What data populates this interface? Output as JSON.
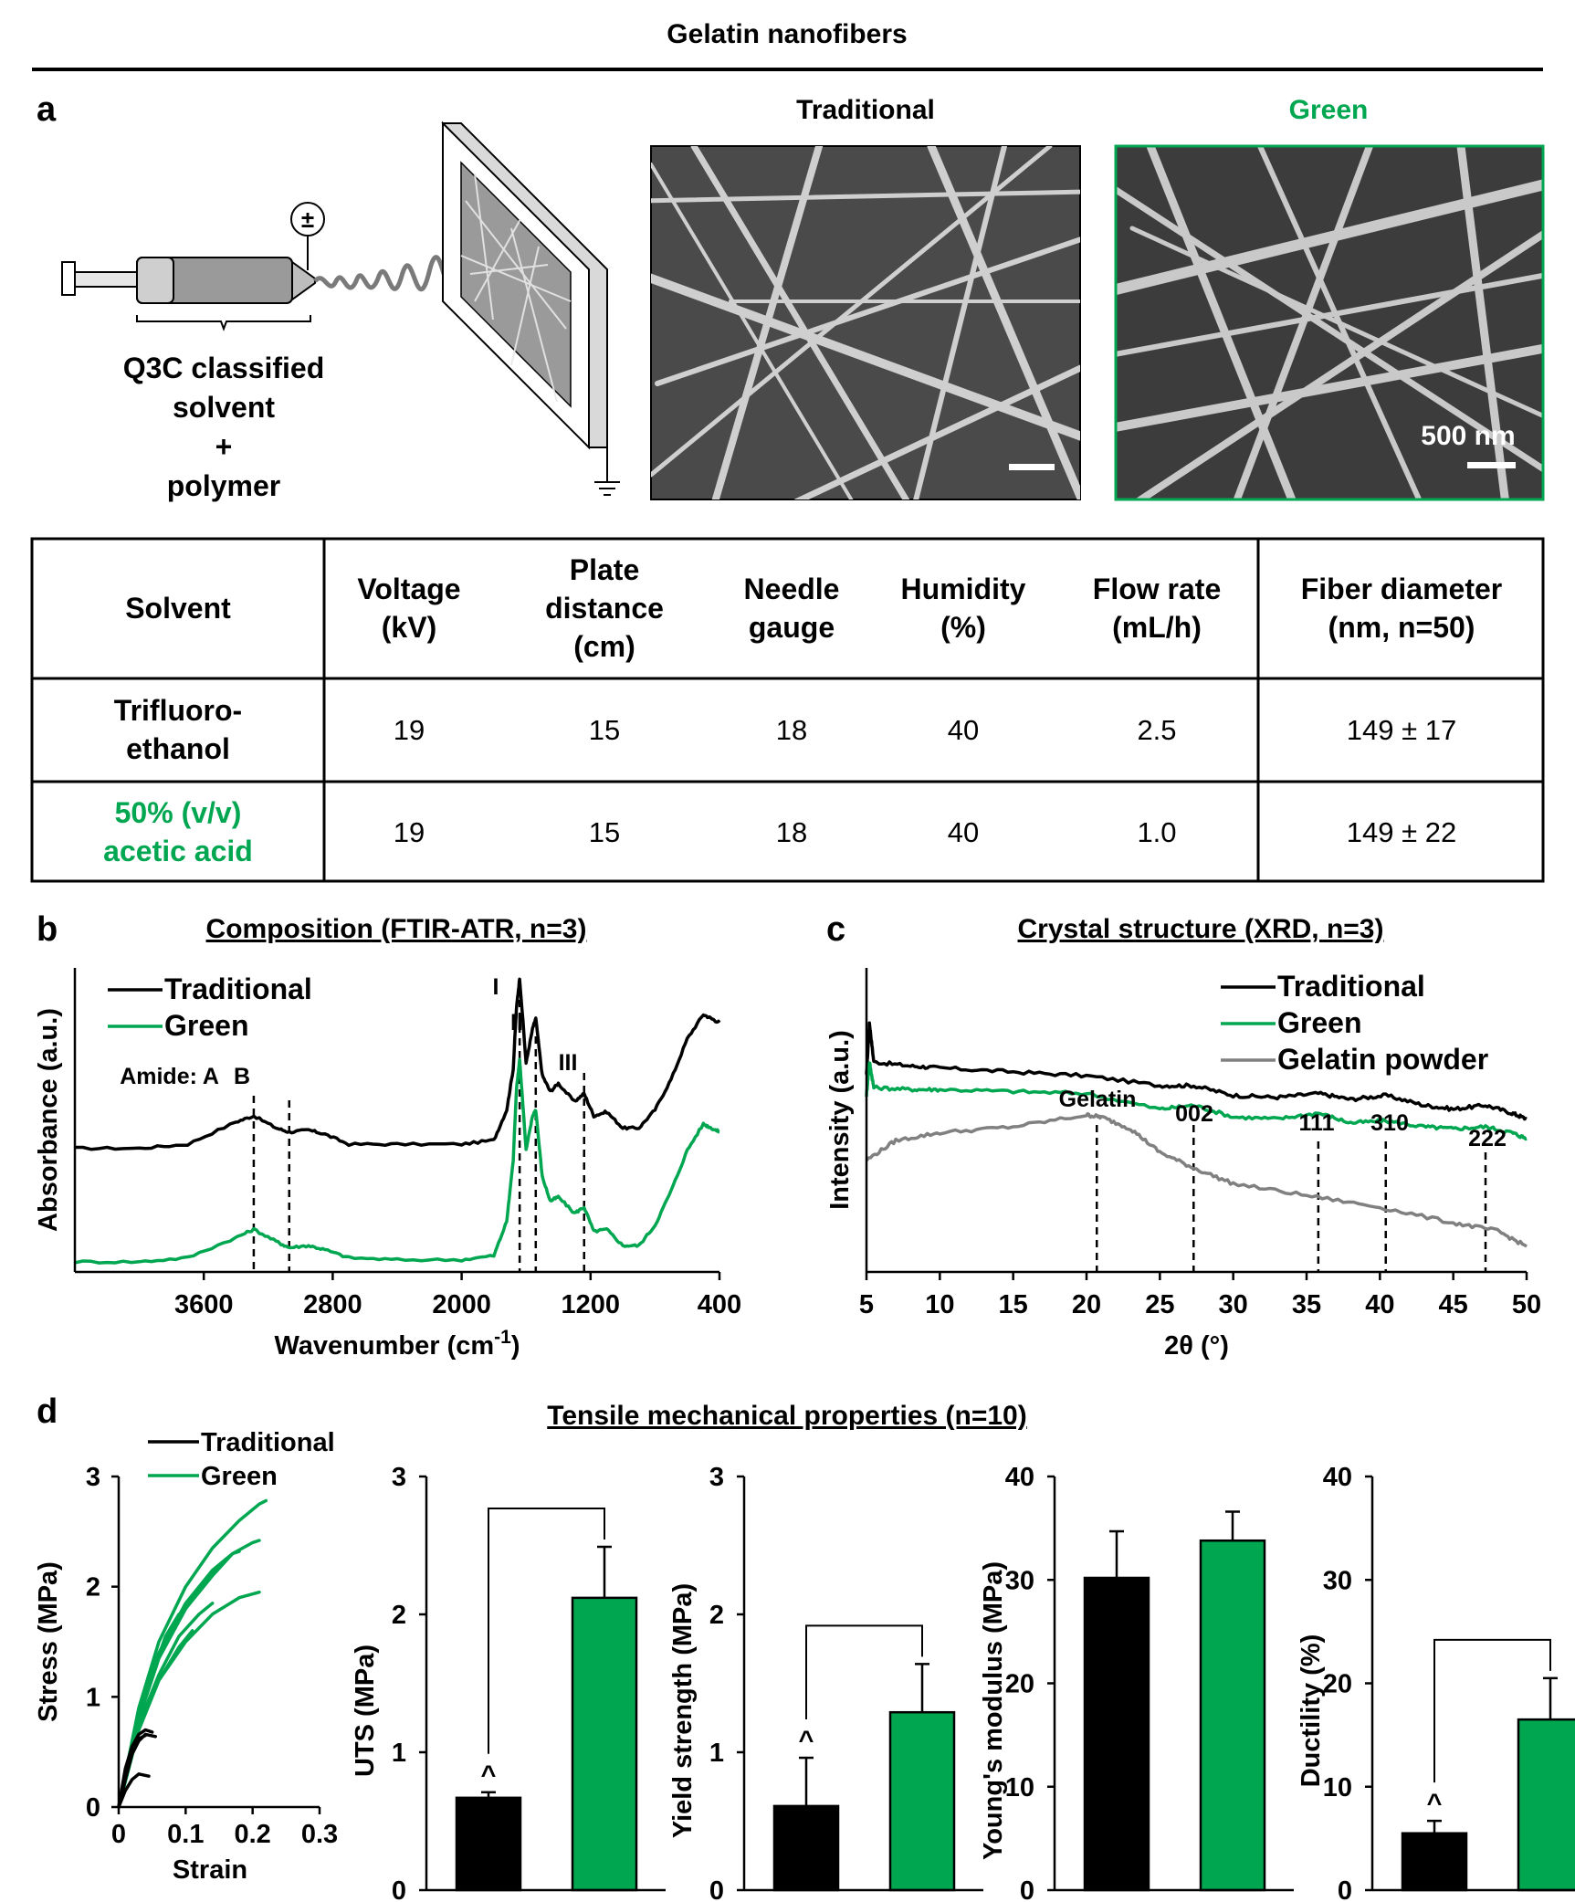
{
  "header": {
    "title": "Gelatin nanofibers"
  },
  "colors": {
    "green": "#00a650",
    "black": "#000000",
    "grey": "#808080"
  },
  "panel_a": {
    "label": "a",
    "schematic_caption": [
      "Q3C classified",
      "solvent",
      "+",
      "polymer"
    ],
    "image_traditional_title": "Traditional",
    "image_green_title": "Green",
    "scale_bar_label": "500 nm"
  },
  "table": {
    "headers": [
      [
        "Solvent"
      ],
      [
        "Voltage",
        "(kV)"
      ],
      [
        "Plate",
        "distance",
        "(cm)"
      ],
      [
        "Needle",
        "gauge"
      ],
      [
        "Humidity",
        "(%)"
      ],
      [
        "Flow rate",
        "(mL/h)"
      ],
      [
        "Fiber diameter",
        "(nm, n=50)"
      ]
    ],
    "rows": [
      {
        "solvent": [
          "Trifluoro-",
          "ethanol"
        ],
        "voltage": "19",
        "distance": "15",
        "gauge": "18",
        "humidity": "40",
        "flow": "2.5",
        "diameter": "149 ± 17"
      },
      {
        "solvent": [
          "50% (v/v)",
          "acetic acid"
        ],
        "voltage": "19",
        "distance": "15",
        "gauge": "18",
        "humidity": "40",
        "flow": "1.0",
        "diameter": "149 ± 22"
      }
    ]
  },
  "chart_data": [
    {
      "id": "b",
      "label": "b",
      "type": "line",
      "title": "Composition (FTIR-ATR, n=3)",
      "xlabel": "Wavenumber (cm-1)",
      "ylabel": "Absorbance (a.u.)",
      "xlim": [
        4400,
        400
      ],
      "x_ticks": [
        3600,
        2800,
        2000,
        1200,
        400
      ],
      "x_reversed": true,
      "legend": [
        "Traditional",
        "Green"
      ],
      "annotations": [
        "Amide: A",
        "B",
        "I",
        "II",
        "III"
      ],
      "peak_lines_x": [
        3290,
        3070,
        1640,
        1540,
        1240
      ],
      "series": [
        {
          "name": "Traditional",
          "color": "#000000",
          "x": [
            4400,
            4000,
            3700,
            3400,
            3290,
            3150,
            3070,
            2950,
            2850,
            2700,
            2400,
            2000,
            1800,
            1720,
            1680,
            1660,
            1640,
            1600,
            1560,
            1540,
            1500,
            1450,
            1400,
            1300,
            1240,
            1180,
            1100,
            1000,
            900,
            800,
            700,
            600,
            500,
            450,
            400
          ],
          "y": [
            0.56,
            0.56,
            0.58,
            0.69,
            0.72,
            0.66,
            0.64,
            0.65,
            0.63,
            0.58,
            0.58,
            0.58,
            0.6,
            0.75,
            0.95,
            1.25,
            1.4,
            0.98,
            1.15,
            1.2,
            0.92,
            0.84,
            0.88,
            0.79,
            0.83,
            0.72,
            0.74,
            0.66,
            0.66,
            0.75,
            0.9,
            1.1,
            1.22,
            1.2,
            1.18
          ]
        },
        {
          "name": "Green",
          "color": "#00a650",
          "x": [
            4400,
            4000,
            3700,
            3400,
            3290,
            3150,
            3070,
            2950,
            2850,
            2700,
            2400,
            2000,
            1800,
            1720,
            1680,
            1660,
            1640,
            1600,
            1560,
            1540,
            1500,
            1450,
            1400,
            1300,
            1240,
            1180,
            1100,
            1000,
            900,
            800,
            700,
            600,
            500,
            450,
            400
          ],
          "y": [
            0.0,
            0.0,
            0.02,
            0.12,
            0.16,
            0.1,
            0.07,
            0.08,
            0.06,
            0.02,
            0.01,
            0.01,
            0.03,
            0.2,
            0.5,
            0.85,
            1.0,
            0.55,
            0.72,
            0.75,
            0.42,
            0.3,
            0.32,
            0.24,
            0.27,
            0.15,
            0.16,
            0.08,
            0.08,
            0.18,
            0.35,
            0.55,
            0.68,
            0.66,
            0.64
          ]
        }
      ]
    },
    {
      "id": "c",
      "label": "c",
      "type": "line",
      "title": "Crystal structure (XRD, n=3)",
      "xlabel": "2θ (°)",
      "ylabel": "Intensity (a.u.)",
      "xlim": [
        5,
        50
      ],
      "x_ticks": [
        5,
        10,
        15,
        20,
        25,
        30,
        35,
        40,
        45,
        50
      ],
      "legend": [
        "Traditional",
        "Green",
        "Gelatin powder"
      ],
      "annotations": [
        "Gelatin",
        "002",
        "111",
        "310",
        "222"
      ],
      "peak_lines_x": [
        20.7,
        27.3,
        35.8,
        40.4,
        47.2
      ],
      "series": [
        {
          "name": "Traditional",
          "color": "#000000",
          "x": [
            5,
            5.2,
            5.5,
            8,
            10,
            15,
            20,
            25,
            27.3,
            30,
            33,
            35.8,
            38,
            40.4,
            43,
            45,
            47.2,
            49,
            50
          ],
          "y": [
            1.05,
            1.32,
            1.12,
            1.1,
            1.09,
            1.07,
            1.05,
            1.0,
            1.0,
            0.95,
            0.94,
            0.96,
            0.93,
            0.95,
            0.9,
            0.88,
            0.9,
            0.86,
            0.83
          ]
        },
        {
          "name": "Green",
          "color": "#00a650",
          "x": [
            5,
            5.2,
            5.5,
            8,
            10,
            15,
            20,
            25,
            27.3,
            30,
            33,
            35.8,
            38,
            40.4,
            43,
            45,
            47.2,
            49,
            50
          ],
          "y": [
            0.95,
            1.12,
            0.99,
            0.98,
            0.98,
            0.97,
            0.96,
            0.88,
            0.9,
            0.84,
            0.83,
            0.86,
            0.81,
            0.82,
            0.79,
            0.78,
            0.79,
            0.76,
            0.73
          ]
        },
        {
          "name": "Gelatin powder",
          "color": "#808080",
          "x": [
            5,
            7,
            10,
            15,
            20,
            21,
            23,
            25,
            27.3,
            30,
            35,
            40,
            45,
            48,
            50
          ],
          "y": [
            0.62,
            0.72,
            0.76,
            0.79,
            0.85,
            0.84,
            0.78,
            0.66,
            0.58,
            0.5,
            0.44,
            0.38,
            0.3,
            0.26,
            0.18
          ]
        }
      ]
    },
    {
      "id": "d-curves",
      "label": "d",
      "type": "line",
      "title": "Tensile mechanical properties (n=10)",
      "xlabel": "Strain",
      "ylabel": "Stress (MPa)",
      "xlim": [
        0,
        0.3
      ],
      "ylim": [
        0,
        3
      ],
      "x_ticks": [
        0,
        0.1,
        0.2,
        0.3
      ],
      "y_ticks": [
        0,
        1,
        2,
        3
      ],
      "legend": [
        "Traditional",
        "Green"
      ],
      "series": [
        {
          "name": "Green",
          "color": "#00a650",
          "x": [
            0,
            0.03,
            0.06,
            0.1,
            0.14,
            0.18,
            0.21,
            0.22
          ],
          "y": [
            0,
            0.9,
            1.5,
            2.0,
            2.35,
            2.6,
            2.75,
            2.78
          ]
        },
        {
          "name": "Green",
          "color": "#00a650",
          "x": [
            0,
            0.03,
            0.06,
            0.1,
            0.14,
            0.17,
            0.2,
            0.21
          ],
          "y": [
            0,
            0.8,
            1.35,
            1.8,
            2.1,
            2.3,
            2.4,
            2.42
          ]
        },
        {
          "name": "Green",
          "color": "#00a650",
          "x": [
            0,
            0.03,
            0.06,
            0.1,
            0.14,
            0.17,
            0.18
          ],
          "y": [
            0,
            0.85,
            1.4,
            1.85,
            2.15,
            2.3,
            2.32
          ]
        },
        {
          "name": "Green",
          "color": "#00a650",
          "x": [
            0,
            0.03,
            0.06,
            0.1,
            0.13,
            0.16
          ],
          "y": [
            0,
            0.8,
            1.35,
            1.8,
            2.05,
            2.25
          ]
        },
        {
          "name": "Green",
          "color": "#00a650",
          "x": [
            0,
            0.03,
            0.06,
            0.1,
            0.14,
            0.18,
            0.21
          ],
          "y": [
            0,
            0.7,
            1.15,
            1.5,
            1.75,
            1.9,
            1.95
          ]
        },
        {
          "name": "Green",
          "color": "#00a650",
          "x": [
            0,
            0.03,
            0.06,
            0.09,
            0.12,
            0.14
          ],
          "y": [
            0,
            0.75,
            1.2,
            1.55,
            1.75,
            1.85
          ]
        },
        {
          "name": "Green",
          "color": "#00a650",
          "x": [
            0,
            0.03,
            0.06,
            0.09,
            0.11
          ],
          "y": [
            0,
            0.7,
            1.15,
            1.45,
            1.6
          ]
        },
        {
          "name": "Green",
          "color": "#00a650",
          "x": [
            0,
            0.03,
            0.05,
            0.07,
            0.09
          ],
          "y": [
            0,
            0.8,
            1.2,
            1.55,
            1.75
          ]
        },
        {
          "name": "Traditional",
          "color": "#000000",
          "x": [
            0,
            0.01,
            0.02,
            0.03,
            0.04,
            0.05
          ],
          "y": [
            0,
            0.3,
            0.55,
            0.66,
            0.7,
            0.68
          ]
        },
        {
          "name": "Traditional",
          "color": "#000000",
          "x": [
            0,
            0.01,
            0.02,
            0.03,
            0.04,
            0.055
          ],
          "y": [
            0,
            0.25,
            0.48,
            0.6,
            0.66,
            0.64
          ]
        },
        {
          "name": "Traditional",
          "color": "#000000",
          "x": [
            0,
            0.01,
            0.02,
            0.03,
            0.04
          ],
          "y": [
            0,
            0.35,
            0.55,
            0.62,
            0.65
          ]
        },
        {
          "name": "Traditional",
          "color": "#000000",
          "x": [
            0,
            0.01,
            0.02,
            0.03,
            0.045
          ],
          "y": [
            0,
            0.15,
            0.25,
            0.3,
            0.28
          ]
        }
      ]
    },
    {
      "id": "d-uts",
      "type": "bar",
      "ylabel": "UTS (MPa)",
      "ylim": [
        0,
        3
      ],
      "y_ticks": [
        0,
        1,
        2,
        3
      ],
      "categories": [
        "Traditional",
        "Green"
      ],
      "values": [
        0.67,
        2.12
      ],
      "errors": [
        0.04,
        0.37
      ],
      "colors": [
        "#000000",
        "#00a650"
      ],
      "marker": "^",
      "significance_bracket": true
    },
    {
      "id": "d-yield",
      "type": "bar",
      "ylabel": "Yield strength (MPa)",
      "ylim": [
        0,
        3
      ],
      "y_ticks": [
        0,
        1,
        2,
        3
      ],
      "categories": [
        "Traditional",
        "Green"
      ],
      "values": [
        0.61,
        1.29
      ],
      "errors": [
        0.35,
        0.35
      ],
      "colors": [
        "#000000",
        "#00a650"
      ],
      "marker": "^",
      "significance_bracket": true
    },
    {
      "id": "d-modulus",
      "type": "bar",
      "ylabel": "Young's modulus (MPa)",
      "ylim": [
        0,
        40
      ],
      "y_ticks": [
        0,
        10,
        20,
        30,
        40
      ],
      "categories": [
        "Traditional",
        "Green"
      ],
      "values": [
        30.2,
        33.8
      ],
      "errors": [
        4.5,
        2.8
      ],
      "colors": [
        "#000000",
        "#00a650"
      ],
      "marker": "",
      "significance_bracket": false
    },
    {
      "id": "d-ductility",
      "type": "bar",
      "ylabel": "Ductility (%)",
      "ylim": [
        0,
        40
      ],
      "y_ticks": [
        0,
        10,
        20,
        30,
        40
      ],
      "categories": [
        "Traditional",
        "Green"
      ],
      "values": [
        5.5,
        16.5
      ],
      "errors": [
        1.2,
        4.0
      ],
      "colors": [
        "#000000",
        "#00a650"
      ],
      "marker": "^",
      "significance_bracket": true
    }
  ]
}
